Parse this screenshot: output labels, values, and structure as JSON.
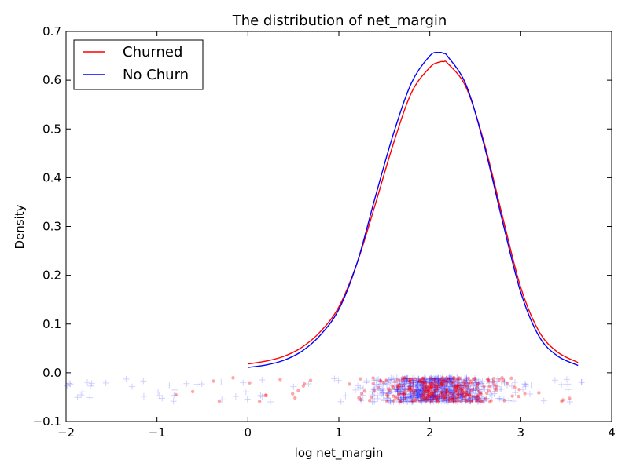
{
  "chart_data": {
    "type": "line",
    "title": "The distribution of net_margin",
    "xlabel": "log net_margin",
    "ylabel": "Density",
    "xlim": [
      -2,
      4
    ],
    "ylim": [
      -0.1,
      0.7
    ],
    "xticks": [
      -2,
      -1,
      0,
      1,
      2,
      3,
      4
    ],
    "yticks": [
      -0.1,
      0.0,
      0.1,
      0.2,
      0.3,
      0.4,
      0.5,
      0.6,
      0.7
    ],
    "xtick_labels": [
      "−2",
      "−1",
      "0",
      "1",
      "2",
      "3",
      "4"
    ],
    "ytick_labels": [
      "−0.1",
      "0.0",
      "0.1",
      "0.2",
      "0.3",
      "0.4",
      "0.5",
      "0.6",
      "0.7"
    ],
    "grid": false,
    "legend_position": "top-left",
    "series": [
      {
        "name": "Churned",
        "color": "#ff0000",
        "x": [
          0.0,
          0.2,
          0.4,
          0.6,
          0.8,
          1.0,
          1.2,
          1.4,
          1.6,
          1.8,
          2.0,
          2.1,
          2.15,
          2.2,
          2.4,
          2.6,
          2.8,
          3.0,
          3.2,
          3.4,
          3.63
        ],
        "y": [
          0.018,
          0.024,
          0.034,
          0.053,
          0.085,
          0.135,
          0.225,
          0.345,
          0.47,
          0.575,
          0.626,
          0.637,
          0.638,
          0.634,
          0.585,
          0.47,
          0.32,
          0.175,
          0.085,
          0.043,
          0.021
        ]
      },
      {
        "name": "No Churn",
        "color": "#0000ff",
        "x": [
          0.0,
          0.2,
          0.4,
          0.6,
          0.8,
          1.0,
          1.2,
          1.4,
          1.6,
          1.8,
          2.0,
          2.1,
          2.15,
          2.2,
          2.4,
          2.6,
          2.8,
          3.0,
          3.2,
          3.4,
          3.63
        ],
        "y": [
          0.011,
          0.016,
          0.026,
          0.045,
          0.078,
          0.13,
          0.225,
          0.36,
          0.49,
          0.595,
          0.65,
          0.657,
          0.655,
          0.648,
          0.59,
          0.465,
          0.31,
          0.165,
          0.075,
          0.035,
          0.015
        ]
      }
    ],
    "rug": [
      {
        "name": "Churned",
        "marker": "circle",
        "color": "#ff0000",
        "x_range": [
          -2.0,
          3.6
        ],
        "y_range": [
          -0.06,
          -0.01
        ],
        "concentration_range": [
          1.2,
          3.0
        ]
      },
      {
        "name": "No Churn",
        "marker": "plus",
        "color": "#0000ff",
        "x_range": [
          -2.0,
          3.7
        ],
        "y_range": [
          -0.06,
          -0.01
        ],
        "concentration_range": [
          1.0,
          3.1
        ]
      }
    ]
  }
}
